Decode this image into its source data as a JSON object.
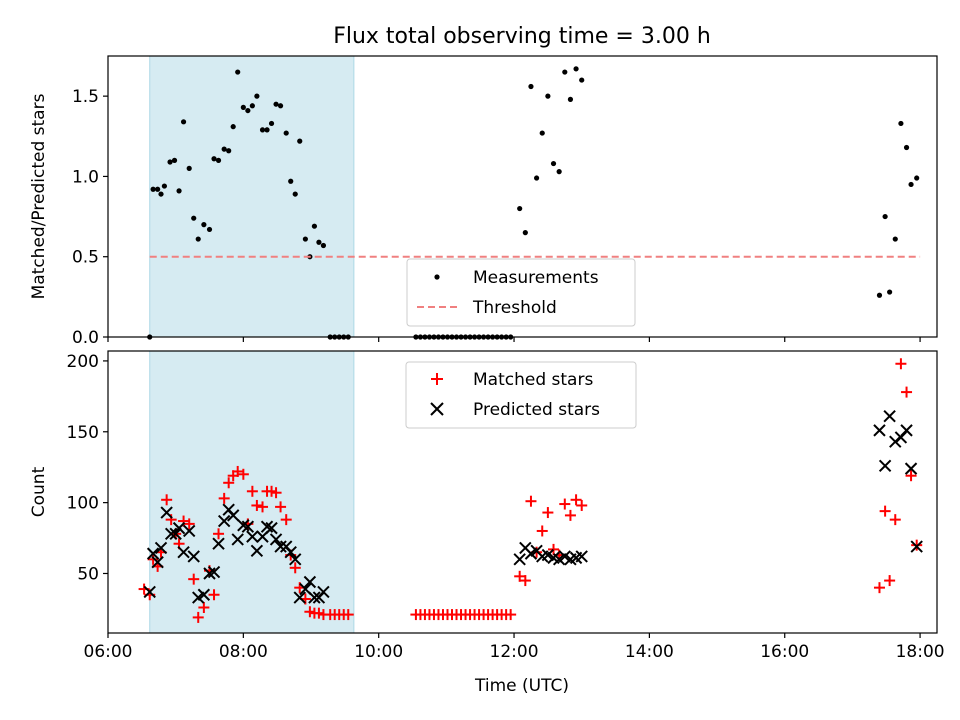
{
  "title": "Flux total observing time = 3.00 h",
  "chart_data": [
    {
      "type": "scatter",
      "ylabel": "Matched/Predicted stars",
      "xlabel": "",
      "xlim": [
        "06:00",
        "18:15"
      ],
      "ylim": [
        0,
        1.75
      ],
      "yticks": [
        0.0,
        0.5,
        1.0,
        1.5
      ],
      "ytick_labels": [
        "0.0",
        "0.5",
        "1.0",
        "1.5"
      ],
      "grid": false,
      "legend_position": "bottom-center",
      "shaded_span": {
        "start": "06:37",
        "end": "09:38",
        "color": "#add8e6"
      },
      "series": [
        {
          "name": "Measurements",
          "marker": "dot",
          "color": "#000000",
          "points": [
            [
              "06:37",
              0.0
            ],
            [
              "06:40",
              0.92
            ],
            [
              "06:44",
              0.92
            ],
            [
              "06:47",
              0.89
            ],
            [
              "06:50",
              0.94
            ],
            [
              "06:55",
              1.09
            ],
            [
              "06:59",
              1.1
            ],
            [
              "07:03",
              0.91
            ],
            [
              "07:07",
              1.34
            ],
            [
              "07:12",
              1.05
            ],
            [
              "07:16",
              0.74
            ],
            [
              "07:20",
              0.61
            ],
            [
              "07:25",
              0.7
            ],
            [
              "07:30",
              0.67
            ],
            [
              "07:34",
              1.11
            ],
            [
              "07:38",
              1.1
            ],
            [
              "07:43",
              1.17
            ],
            [
              "07:47",
              1.16
            ],
            [
              "07:51",
              1.31
            ],
            [
              "07:55",
              1.65
            ],
            [
              "08:00",
              1.43
            ],
            [
              "08:04",
              1.41
            ],
            [
              "08:08",
              1.44
            ],
            [
              "08:12",
              1.5
            ],
            [
              "08:17",
              1.29
            ],
            [
              "08:21",
              1.29
            ],
            [
              "08:25",
              1.33
            ],
            [
              "08:29",
              1.45
            ],
            [
              "08:33",
              1.44
            ],
            [
              "08:38",
              1.27
            ],
            [
              "08:42",
              0.97
            ],
            [
              "08:46",
              0.89
            ],
            [
              "08:50",
              1.22
            ],
            [
              "08:55",
              0.61
            ],
            [
              "08:59",
              0.5
            ],
            [
              "09:03",
              0.69
            ],
            [
              "09:07",
              0.59
            ],
            [
              "09:11",
              0.57
            ],
            [
              "09:17",
              0.0
            ],
            [
              "09:21",
              0.0
            ],
            [
              "09:25",
              0.0
            ],
            [
              "09:29",
              0.0
            ],
            [
              "09:33",
              0.0
            ],
            [
              "10:33",
              0.0
            ],
            [
              "10:37",
              0.0
            ],
            [
              "10:41",
              0.0
            ],
            [
              "10:45",
              0.0
            ],
            [
              "10:49",
              0.0
            ],
            [
              "10:53",
              0.0
            ],
            [
              "10:57",
              0.0
            ],
            [
              "11:01",
              0.0
            ],
            [
              "11:05",
              0.0
            ],
            [
              "11:09",
              0.0
            ],
            [
              "11:13",
              0.0
            ],
            [
              "11:17",
              0.0
            ],
            [
              "11:21",
              0.0
            ],
            [
              "11:25",
              0.0
            ],
            [
              "11:29",
              0.0
            ],
            [
              "11:33",
              0.0
            ],
            [
              "11:37",
              0.0
            ],
            [
              "11:41",
              0.0
            ],
            [
              "11:45",
              0.0
            ],
            [
              "11:49",
              0.0
            ],
            [
              "11:53",
              0.0
            ],
            [
              "11:57",
              0.0
            ],
            [
              "12:05",
              0.8
            ],
            [
              "12:10",
              0.65
            ],
            [
              "12:15",
              1.56
            ],
            [
              "12:20",
              0.99
            ],
            [
              "12:25",
              1.27
            ],
            [
              "12:30",
              1.5
            ],
            [
              "12:35",
              1.08
            ],
            [
              "12:40",
              1.03
            ],
            [
              "12:45",
              1.65
            ],
            [
              "12:50",
              1.48
            ],
            [
              "12:55",
              1.67
            ],
            [
              "13:00",
              1.6
            ],
            [
              "17:24",
              0.26
            ],
            [
              "17:29",
              0.75
            ],
            [
              "17:33",
              0.28
            ],
            [
              "17:38",
              0.61
            ],
            [
              "17:43",
              1.33
            ],
            [
              "17:48",
              1.18
            ],
            [
              "17:52",
              0.95
            ],
            [
              "17:57",
              0.99
            ]
          ]
        },
        {
          "name": "Threshold",
          "marker": "dashed-line",
          "color": "#f08080",
          "points": [
            [
              "06:37",
              0.5
            ],
            [
              "18:00",
              0.5
            ]
          ]
        }
      ]
    },
    {
      "type": "scatter",
      "ylabel": "Count",
      "xlabel": "Time (UTC)",
      "xlim": [
        "06:00",
        "18:15"
      ],
      "ylim": [
        8,
        207
      ],
      "yticks": [
        50,
        100,
        150,
        200
      ],
      "ytick_labels": [
        "50",
        "100",
        "150",
        "200"
      ],
      "xticks": [
        "06:00",
        "08:00",
        "10:00",
        "12:00",
        "14:00",
        "16:00",
        "18:00"
      ],
      "grid": false,
      "legend_position": "top-center",
      "shaded_span": {
        "start": "06:37",
        "end": "09:38",
        "color": "#add8e6"
      },
      "series": [
        {
          "name": "Matched stars",
          "marker": "plus",
          "color": "#ff0000",
          "points": [
            [
              "06:32",
              39
            ],
            [
              "06:37",
              35
            ],
            [
              "06:40",
              60
            ],
            [
              "06:44",
              55
            ],
            [
              "06:47",
              65
            ],
            [
              "06:52",
              102
            ],
            [
              "06:56",
              88
            ],
            [
              "07:00",
              78
            ],
            [
              "07:03",
              71
            ],
            [
              "07:07",
              87
            ],
            [
              "07:12",
              85
            ],
            [
              "07:16",
              46
            ],
            [
              "07:20",
              19
            ],
            [
              "07:25",
              26
            ],
            [
              "07:30",
              52
            ],
            [
              "07:34",
              35
            ],
            [
              "07:38",
              78
            ],
            [
              "07:43",
              103
            ],
            [
              "07:47",
              114
            ],
            [
              "07:51",
              119
            ],
            [
              "07:55",
              122
            ],
            [
              "08:00",
              120
            ],
            [
              "08:04",
              85
            ],
            [
              "08:08",
              108
            ],
            [
              "08:12",
              98
            ],
            [
              "08:17",
              97
            ],
            [
              "08:21",
              108
            ],
            [
              "08:25",
              108
            ],
            [
              "08:29",
              107
            ],
            [
              "08:33",
              97
            ],
            [
              "08:38",
              88
            ],
            [
              "08:42",
              63
            ],
            [
              "08:46",
              54
            ],
            [
              "08:50",
              40
            ],
            [
              "08:55",
              32
            ],
            [
              "08:59",
              23
            ],
            [
              "09:03",
              22
            ],
            [
              "09:07",
              22
            ],
            [
              "09:11",
              21
            ],
            [
              "09:17",
              21
            ],
            [
              "09:21",
              21
            ],
            [
              "09:25",
              21
            ],
            [
              "09:29",
              21
            ],
            [
              "09:33",
              21
            ],
            [
              "10:33",
              21
            ],
            [
              "10:37",
              21
            ],
            [
              "10:41",
              21
            ],
            [
              "10:45",
              21
            ],
            [
              "10:49",
              21
            ],
            [
              "10:53",
              21
            ],
            [
              "10:57",
              21
            ],
            [
              "11:01",
              21
            ],
            [
              "11:05",
              21
            ],
            [
              "11:09",
              21
            ],
            [
              "11:13",
              21
            ],
            [
              "11:17",
              21
            ],
            [
              "11:21",
              21
            ],
            [
              "11:25",
              21
            ],
            [
              "11:29",
              21
            ],
            [
              "11:33",
              21
            ],
            [
              "11:37",
              21
            ],
            [
              "11:41",
              21
            ],
            [
              "11:45",
              21
            ],
            [
              "11:49",
              21
            ],
            [
              "11:53",
              21
            ],
            [
              "11:57",
              21
            ],
            [
              "12:05",
              48
            ],
            [
              "12:10",
              45
            ],
            [
              "12:15",
              101
            ],
            [
              "12:20",
              65
            ],
            [
              "12:25",
              80
            ],
            [
              "12:30",
              93
            ],
            [
              "12:35",
              67
            ],
            [
              "12:40",
              63
            ],
            [
              "12:45",
              99
            ],
            [
              "12:50",
              91
            ],
            [
              "12:55",
              102
            ],
            [
              "13:00",
              98
            ],
            [
              "17:24",
              40
            ],
            [
              "17:29",
              94
            ],
            [
              "17:33",
              45
            ],
            [
              "17:38",
              88
            ],
            [
              "17:43",
              198
            ],
            [
              "17:48",
              178
            ],
            [
              "17:52",
              119
            ],
            [
              "17:57",
              70
            ]
          ]
        },
        {
          "name": "Predicted stars",
          "marker": "x",
          "color": "#000000",
          "points": [
            [
              "06:37",
              37
            ],
            [
              "06:40",
              64
            ],
            [
              "06:44",
              58
            ],
            [
              "06:47",
              68
            ],
            [
              "06:52",
              93
            ],
            [
              "06:56",
              78
            ],
            [
              "07:00",
              78
            ],
            [
              "07:03",
              82
            ],
            [
              "07:07",
              65
            ],
            [
              "07:12",
              80
            ],
            [
              "07:16",
              62
            ],
            [
              "07:20",
              33
            ],
            [
              "07:25",
              35
            ],
            [
              "07:30",
              50
            ],
            [
              "07:34",
              51
            ],
            [
              "07:38",
              71
            ],
            [
              "07:43",
              87
            ],
            [
              "07:47",
              95
            ],
            [
              "07:51",
              91
            ],
            [
              "07:55",
              74
            ],
            [
              "08:00",
              84
            ],
            [
              "08:04",
              83
            ],
            [
              "08:08",
              76
            ],
            [
              "08:12",
              66
            ],
            [
              "08:17",
              76
            ],
            [
              "08:21",
              83
            ],
            [
              "08:25",
              82
            ],
            [
              "08:29",
              74
            ],
            [
              "08:33",
              69
            ],
            [
              "08:38",
              69
            ],
            [
              "08:42",
              65
            ],
            [
              "08:46",
              60
            ],
            [
              "08:50",
              33
            ],
            [
              "08:55",
              39
            ],
            [
              "08:59",
              44
            ],
            [
              "09:03",
              33
            ],
            [
              "09:07",
              33
            ],
            [
              "09:11",
              37
            ],
            [
              "12:05",
              60
            ],
            [
              "12:10",
              68
            ],
            [
              "12:15",
              64
            ],
            [
              "12:20",
              66
            ],
            [
              "12:25",
              62
            ],
            [
              "12:30",
              63
            ],
            [
              "12:35",
              61
            ],
            [
              "12:40",
              60
            ],
            [
              "12:45",
              62
            ],
            [
              "12:50",
              60
            ],
            [
              "12:55",
              61
            ],
            [
              "13:00",
              62
            ],
            [
              "17:24",
              151
            ],
            [
              "17:29",
              126
            ],
            [
              "17:33",
              161
            ],
            [
              "17:38",
              143
            ],
            [
              "17:43",
              146
            ],
            [
              "17:48",
              151
            ],
            [
              "17:52",
              124
            ],
            [
              "17:57",
              69
            ]
          ]
        }
      ]
    }
  ]
}
